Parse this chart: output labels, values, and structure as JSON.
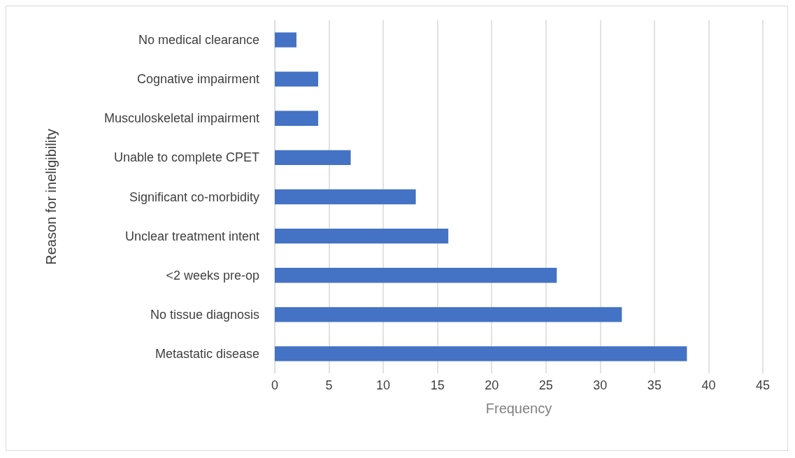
{
  "chart_data": {
    "type": "bar",
    "orientation": "horizontal",
    "xlabel": "Frequency",
    "ylabel": "Reason for ineligibility",
    "categories": [
      "No medical clearance",
      "Cognative impairment",
      "Musculoskeletal impairment",
      "Unable to complete CPET",
      "Significant co-morbidity",
      "Unclear treatment intent",
      "<2 weeks pre-op",
      "No tissue diagnosis",
      "Metastatic disease"
    ],
    "values": [
      2,
      4,
      4,
      7,
      13,
      16,
      26,
      32,
      38
    ],
    "color": "#4472c4",
    "xlim": [
      0,
      45
    ],
    "xticks": [
      0,
      5,
      10,
      15,
      20,
      25,
      30,
      35,
      40,
      45
    ],
    "grid": "x"
  }
}
